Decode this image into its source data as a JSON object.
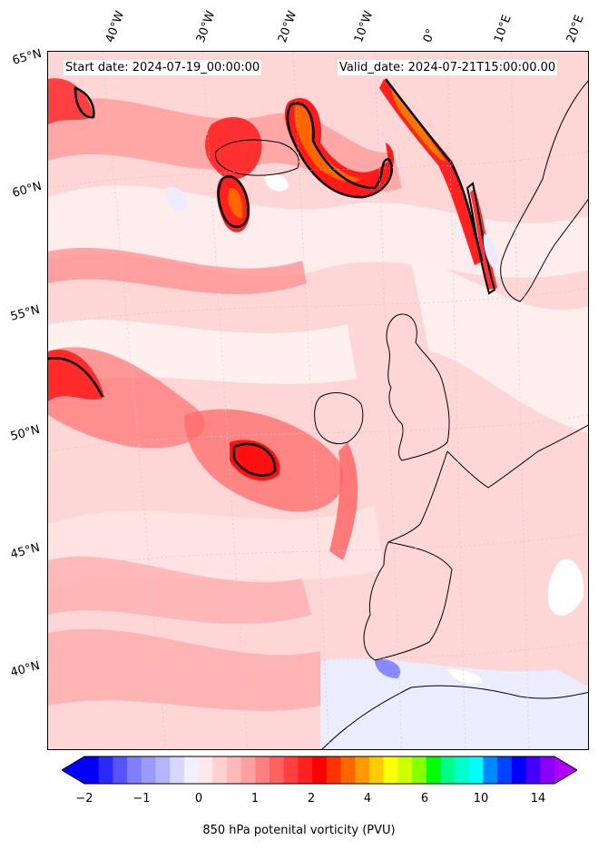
{
  "header": {
    "start_date": "Start date: 2024-07-19_00:00:00",
    "valid_date": "Valid_date: 2024-07-21T15:00:00.00"
  },
  "lat_labels": [
    "65°N",
    "60°N",
    "55°N",
    "50°N",
    "45°N",
    "40°N"
  ],
  "lon_labels": [
    "40°W",
    "30°W",
    "20°W",
    "10°W",
    "0°",
    "10°E",
    "20°E"
  ],
  "colorbar": {
    "title": "850 hPa potenital vorticity (PVU)",
    "tick_labels": [
      "−2",
      "−1",
      "0",
      "1",
      "2",
      "4",
      "6",
      "10",
      "14"
    ],
    "colors": [
      "#0000ff",
      "#2a2aff",
      "#5555ff",
      "#7f7fff",
      "#9a9aff",
      "#b5b5ff",
      "#d6d6ff",
      "#f0f0ff",
      "#ffe8e8",
      "#ffd0d0",
      "#ffb8b8",
      "#ffa0a0",
      "#ff8080",
      "#ff6060",
      "#ff4040",
      "#ff2020",
      "#ff0000",
      "#ff3300",
      "#ff6600",
      "#ff9900",
      "#ffcc00",
      "#ffff00",
      "#ccff00",
      "#88ff00",
      "#00ff00",
      "#00ff88",
      "#00ffcc",
      "#00ffff",
      "#0088ff",
      "#0044ff",
      "#0000ff",
      "#4400ff",
      "#8800ff"
    ],
    "under_color": "#0000ff",
    "over_color": "#b000ff"
  }
}
